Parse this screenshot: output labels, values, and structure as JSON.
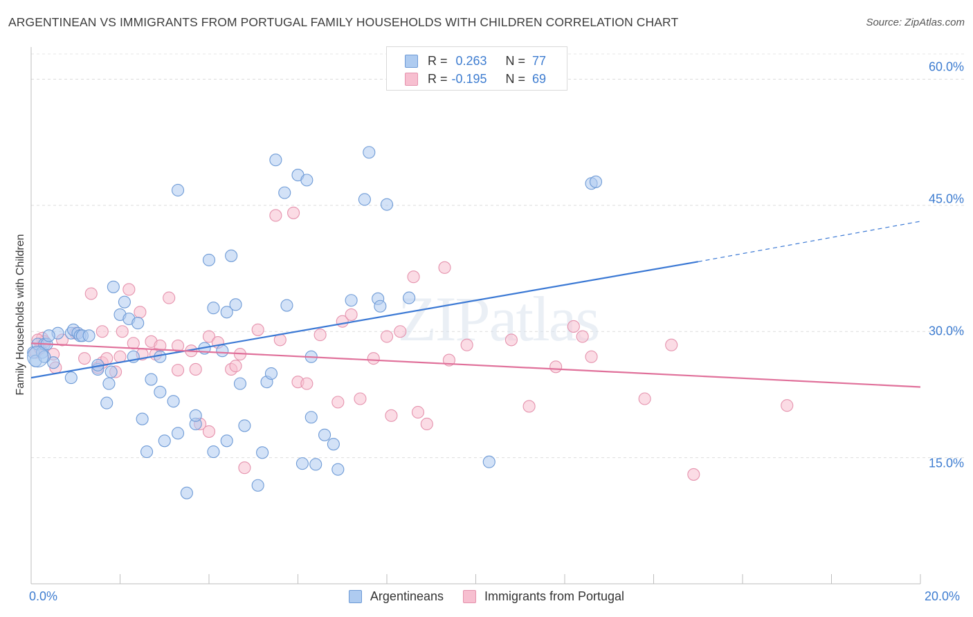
{
  "title": "ARGENTINEAN VS IMMIGRANTS FROM PORTUGAL FAMILY HOUSEHOLDS WITH CHILDREN CORRELATION CHART",
  "source": "Source: ZipAtlas.com",
  "watermark": "ZIPatlas",
  "stats": [
    {
      "r_label": "R =",
      "r_value": "0.263",
      "n_label": "N =",
      "n_value": "77"
    },
    {
      "r_label": "R =",
      "r_value": "-0.195",
      "n_label": "N =",
      "n_value": "69"
    }
  ],
  "colors": {
    "blue_fill": "#aecbf0",
    "blue_stroke": "#6d9ad6",
    "blue_line": "#3a78d4",
    "pink_fill": "#f7bfd0",
    "pink_stroke": "#e592ad",
    "pink_line": "#e0709a",
    "tick_text": "#3d7cd0"
  },
  "chart_data": {
    "type": "scatter",
    "title": "ARGENTINEAN VS IMMIGRANTS FROM PORTUGAL FAMILY HOUSEHOLDS WITH CHILDREN CORRELATION CHART",
    "ylabel": "Family Households with Children",
    "xlabel": "",
    "xlim": [
      0,
      20
    ],
    "ylim": [
      0,
      63
    ],
    "x_tick_labels": [
      "0.0%",
      "20.0%"
    ],
    "y_ticks": [
      15,
      30,
      45,
      60
    ],
    "y_tick_labels": [
      "15.0%",
      "30.0%",
      "45.0%",
      "60.0%"
    ],
    "legend": [
      "Argentineans",
      "Immigrants from Portugal"
    ],
    "legend_position": "bottom",
    "grid": "horizontal dashed",
    "series": [
      {
        "name": "Argentineans",
        "color": "#aecbf0",
        "trend": {
          "x": [
            0,
            15
          ],
          "y": [
            24.5,
            38.3
          ],
          "dashed_to": [
            20,
            43.1
          ]
        },
        "points": [
          [
            0.05,
            27.5
          ],
          [
            0.1,
            26.5
          ],
          [
            0.15,
            28.5
          ],
          [
            0.25,
            27.5
          ],
          [
            0.3,
            28.5
          ],
          [
            0.35,
            28.5
          ],
          [
            0.5,
            26.3
          ],
          [
            0.6,
            29.8
          ],
          [
            0.9,
            29.8
          ],
          [
            0.95,
            30.2
          ],
          [
            1.05,
            29.8
          ],
          [
            1.1,
            29.5
          ],
          [
            1.15,
            29.5
          ],
          [
            1.3,
            29.5
          ],
          [
            0.9,
            24.5
          ],
          [
            1.5,
            25.5
          ],
          [
            1.5,
            26.0
          ],
          [
            1.7,
            21.5
          ],
          [
            1.75,
            23.8
          ],
          [
            1.8,
            25.2
          ],
          [
            1.85,
            35.3
          ],
          [
            2.0,
            32.0
          ],
          [
            2.1,
            33.5
          ],
          [
            2.2,
            31.5
          ],
          [
            2.3,
            27.0
          ],
          [
            2.4,
            31.0
          ],
          [
            2.5,
            19.6
          ],
          [
            2.6,
            15.7
          ],
          [
            2.7,
            24.3
          ],
          [
            2.9,
            22.8
          ],
          [
            2.9,
            27.0
          ],
          [
            3.0,
            17.0
          ],
          [
            3.2,
            21.7
          ],
          [
            3.3,
            17.9
          ],
          [
            3.3,
            46.8
          ],
          [
            3.5,
            10.8
          ],
          [
            3.7,
            19.0
          ],
          [
            3.7,
            20.0
          ],
          [
            3.9,
            28.0
          ],
          [
            4.0,
            38.5
          ],
          [
            4.1,
            32.8
          ],
          [
            4.1,
            15.7
          ],
          [
            4.3,
            27.7
          ],
          [
            4.4,
            17.0
          ],
          [
            4.4,
            32.3
          ],
          [
            4.5,
            39.0
          ],
          [
            4.6,
            33.2
          ],
          [
            4.7,
            23.8
          ],
          [
            4.8,
            18.8
          ],
          [
            5.1,
            11.7
          ],
          [
            5.2,
            15.6
          ],
          [
            5.3,
            24.0
          ],
          [
            5.4,
            25.0
          ],
          [
            5.5,
            50.4
          ],
          [
            5.7,
            46.5
          ],
          [
            5.75,
            33.1
          ],
          [
            6.0,
            48.6
          ],
          [
            6.1,
            14.3
          ],
          [
            6.2,
            48.0
          ],
          [
            6.3,
            27.0
          ],
          [
            6.3,
            19.8
          ],
          [
            6.4,
            14.2
          ],
          [
            6.6,
            17.7
          ],
          [
            6.8,
            16.6
          ],
          [
            6.9,
            13.6
          ],
          [
            7.2,
            33.7
          ],
          [
            7.5,
            45.7
          ],
          [
            7.6,
            51.3
          ],
          [
            7.8,
            33.9
          ],
          [
            7.85,
            33.0
          ],
          [
            8.0,
            45.1
          ],
          [
            8.5,
            34.0
          ],
          [
            10.3,
            14.5
          ],
          [
            12.6,
            47.6
          ],
          [
            12.7,
            47.8
          ],
          [
            0.3,
            27.0
          ],
          [
            0.4,
            29.5
          ]
        ]
      },
      {
        "name": "Immigrants from Portugal",
        "color": "#f7bfd0",
        "trend": {
          "x": [
            0,
            20
          ],
          "y": [
            28.6,
            23.4
          ]
        },
        "points": [
          [
            0.1,
            27.5
          ],
          [
            0.2,
            28.0
          ],
          [
            0.25,
            29.2
          ],
          [
            0.3,
            28.8
          ],
          [
            0.5,
            27.3
          ],
          [
            0.55,
            25.7
          ],
          [
            0.7,
            29.0
          ],
          [
            1.0,
            29.8
          ],
          [
            1.2,
            26.8
          ],
          [
            1.35,
            34.5
          ],
          [
            1.5,
            25.7
          ],
          [
            1.6,
            26.3
          ],
          [
            1.6,
            30.0
          ],
          [
            1.7,
            26.8
          ],
          [
            1.9,
            25.2
          ],
          [
            2.0,
            27.0
          ],
          [
            2.05,
            30.0
          ],
          [
            2.2,
            35.0
          ],
          [
            2.3,
            28.6
          ],
          [
            2.45,
            32.3
          ],
          [
            2.5,
            27.3
          ],
          [
            2.7,
            28.8
          ],
          [
            2.8,
            27.3
          ],
          [
            2.9,
            28.3
          ],
          [
            3.1,
            34.0
          ],
          [
            3.3,
            28.3
          ],
          [
            3.3,
            25.4
          ],
          [
            3.6,
            27.7
          ],
          [
            3.7,
            25.5
          ],
          [
            3.8,
            19.0
          ],
          [
            4.0,
            29.4
          ],
          [
            4.0,
            18.1
          ],
          [
            4.2,
            28.7
          ],
          [
            4.5,
            25.5
          ],
          [
            4.6,
            25.9
          ],
          [
            4.7,
            27.3
          ],
          [
            4.8,
            13.8
          ],
          [
            5.1,
            30.2
          ],
          [
            5.5,
            43.8
          ],
          [
            5.6,
            29.0
          ],
          [
            5.9,
            44.1
          ],
          [
            6.0,
            24.0
          ],
          [
            6.2,
            23.8
          ],
          [
            6.5,
            29.6
          ],
          [
            6.9,
            21.6
          ],
          [
            7.0,
            31.2
          ],
          [
            7.2,
            32.0
          ],
          [
            7.4,
            22.0
          ],
          [
            7.7,
            26.8
          ],
          [
            8.0,
            29.4
          ],
          [
            8.1,
            20.0
          ],
          [
            8.3,
            30.0
          ],
          [
            8.6,
            36.5
          ],
          [
            8.7,
            20.4
          ],
          [
            8.9,
            19.0
          ],
          [
            9.3,
            37.6
          ],
          [
            9.4,
            26.6
          ],
          [
            9.8,
            28.4
          ],
          [
            10.8,
            29.0
          ],
          [
            11.2,
            21.1
          ],
          [
            11.8,
            25.8
          ],
          [
            12.2,
            30.6
          ],
          [
            12.4,
            29.4
          ],
          [
            12.6,
            27.0
          ],
          [
            13.8,
            22.0
          ],
          [
            14.4,
            28.4
          ],
          [
            14.9,
            13.0
          ],
          [
            17.0,
            21.2
          ],
          [
            0.15,
            29.0
          ]
        ]
      }
    ]
  },
  "legend": {
    "items": [
      "Argentineans",
      "Immigrants from Portugal"
    ]
  }
}
